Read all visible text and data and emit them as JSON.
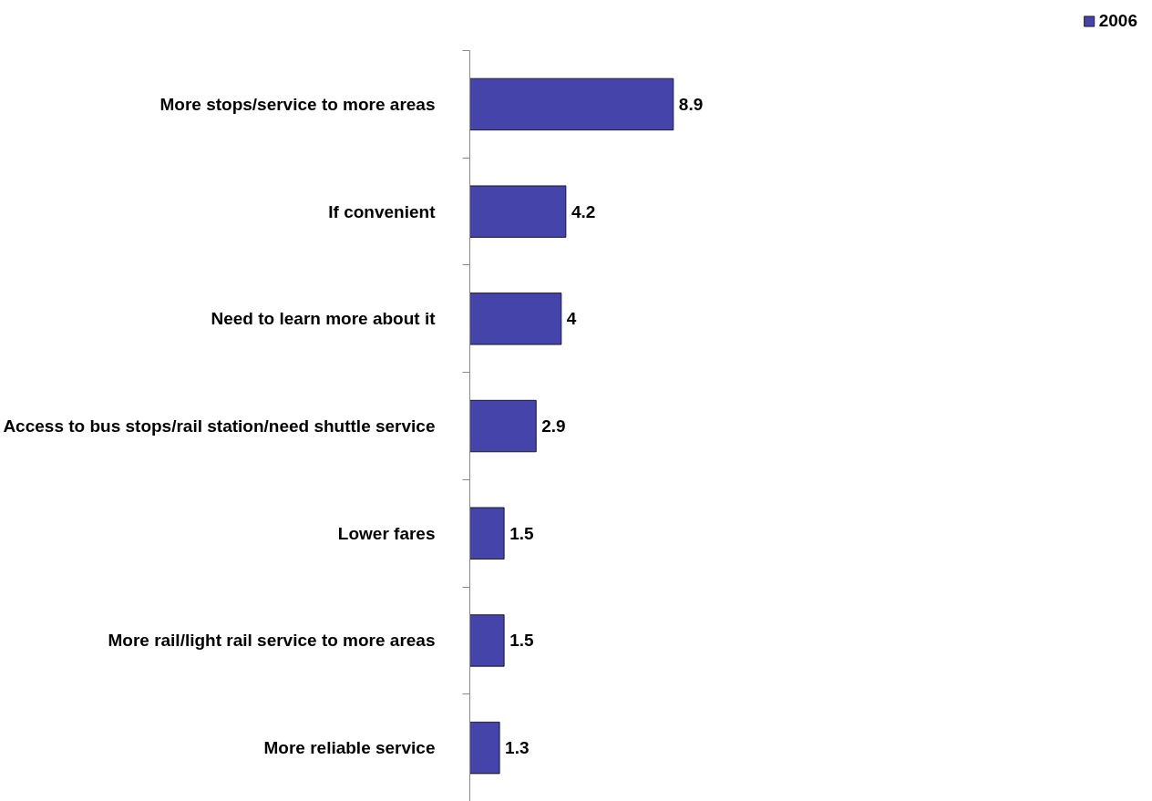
{
  "chart_data": {
    "type": "bar",
    "orientation": "horizontal",
    "categories": [
      "More stops/service to more areas",
      "If convenient",
      "Need to learn more about it",
      "Access to bus stops/rail station/need shuttle service",
      "Lower fares",
      "More rail/light rail service to more areas",
      "More reliable service"
    ],
    "series": [
      {
        "name": "2006",
        "color": "#4444aa",
        "values": [
          8.9,
          4.2,
          4,
          2.9,
          1.5,
          1.5,
          1.3
        ]
      }
    ],
    "data_labels": true,
    "legend": "top right",
    "grid": false
  }
}
